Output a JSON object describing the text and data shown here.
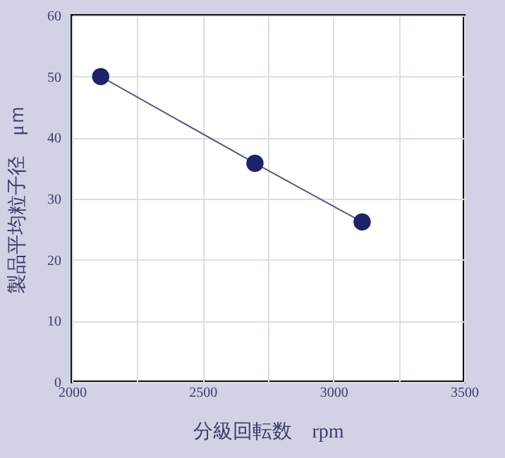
{
  "chart_data": {
    "type": "line",
    "xlabel": "分級回転数　rpm",
    "ylabel": "製品平均粒子径　μｍ",
    "x": [
      2110,
      2700,
      3110
    ],
    "series": [
      {
        "color": "#1c2366",
        "values": [
          50,
          35.8,
          26.2
        ]
      }
    ],
    "xlim": [
      2000,
      3500
    ],
    "ylim": [
      0,
      60
    ],
    "xticks": [
      2000,
      {
        "value": 2250,
        "label": null
      },
      2500,
      {
        "value": 2750,
        "label": null
      },
      3000,
      {
        "value": 3250,
        "label": null
      },
      3500
    ],
    "yticks": [
      0,
      10,
      20,
      30,
      40,
      50,
      60
    ],
    "grid": true,
    "marker": "circle",
    "line_style": "solid"
  }
}
